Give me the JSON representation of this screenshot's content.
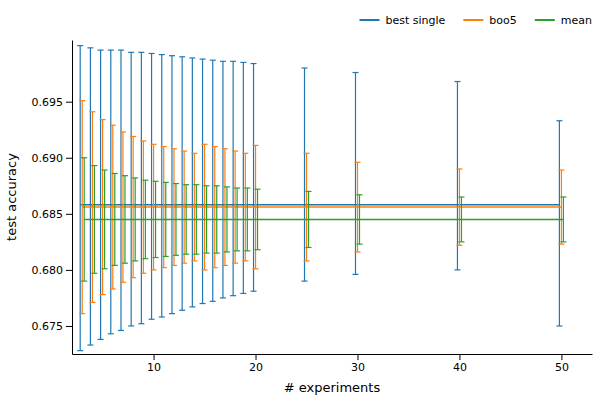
{
  "chart_data": {
    "type": "line",
    "xlabel": "# experiments",
    "ylabel": "test accuracy",
    "x": [
      3,
      4,
      5,
      6,
      7,
      8,
      9,
      10,
      11,
      12,
      13,
      14,
      15,
      16,
      17,
      18,
      19,
      20,
      25,
      30,
      40,
      50
    ],
    "series": [
      {
        "name": "best single",
        "color": "#1f77b4",
        "values": [
          0.6858,
          0.6858,
          0.6858,
          0.6858,
          0.6858,
          0.6858,
          0.6858,
          0.6858,
          0.6858,
          0.6858,
          0.6858,
          0.6858,
          0.6858,
          0.6858,
          0.6858,
          0.6858,
          0.6858,
          0.6858,
          0.6858,
          0.6858,
          0.6858,
          0.6858
        ],
        "error_lower": [
          0.013,
          0.0125,
          0.012,
          0.0115,
          0.0112,
          0.0108,
          0.0106,
          0.0102,
          0.01,
          0.0097,
          0.0094,
          0.0091,
          0.0088,
          0.0086,
          0.0083,
          0.0081,
          0.0079,
          0.0077,
          0.0068,
          0.0062,
          0.0058,
          0.0108
        ],
        "error_upper": [
          0.0142,
          0.014,
          0.0138,
          0.0138,
          0.0138,
          0.0136,
          0.0136,
          0.0135,
          0.0134,
          0.0133,
          0.0132,
          0.0131,
          0.013,
          0.0129,
          0.0128,
          0.0128,
          0.0127,
          0.0126,
          0.0122,
          0.0118,
          0.011,
          0.0075
        ]
      },
      {
        "name": "boo5",
        "color": "#ff7f0e",
        "values": [
          0.6856,
          0.6856,
          0.6856,
          0.6856,
          0.6856,
          0.6856,
          0.6856,
          0.6856,
          0.6856,
          0.6856,
          0.6856,
          0.6856,
          0.6856,
          0.6856,
          0.6856,
          0.6856,
          0.6856,
          0.6856,
          0.6856,
          0.6856,
          0.6856,
          0.6856
        ],
        "error_lower": [
          0.0095,
          0.0085,
          0.0078,
          0.0073,
          0.0067,
          0.0063,
          0.0059,
          0.0056,
          0.0054,
          0.0052,
          0.005,
          0.0048,
          0.0056,
          0.0054,
          0.0052,
          0.005,
          0.0048,
          0.0055,
          0.0048,
          0.004,
          0.0034,
          0.0033
        ],
        "error_upper": [
          0.0095,
          0.0085,
          0.0078,
          0.0073,
          0.0067,
          0.0063,
          0.0059,
          0.0056,
          0.0054,
          0.0052,
          0.005,
          0.0048,
          0.0056,
          0.0054,
          0.0052,
          0.005,
          0.0048,
          0.0055,
          0.0048,
          0.004,
          0.0034,
          0.0033
        ]
      },
      {
        "name": "mean",
        "color": "#2ca02c",
        "values": [
          0.6845,
          0.6845,
          0.6845,
          0.6845,
          0.6845,
          0.6845,
          0.6845,
          0.6845,
          0.6845,
          0.6845,
          0.6845,
          0.6845,
          0.6845,
          0.6845,
          0.6845,
          0.6845,
          0.6845,
          0.6845,
          0.6845,
          0.6845,
          0.6845,
          0.6845
        ],
        "error_lower": [
          0.0055,
          0.0048,
          0.0044,
          0.0041,
          0.0039,
          0.0037,
          0.0035,
          0.0034,
          0.0033,
          0.0032,
          0.0031,
          0.0031,
          0.003,
          0.003,
          0.0029,
          0.0028,
          0.0028,
          0.0027,
          0.0025,
          0.0022,
          0.002,
          0.002
        ],
        "error_upper": [
          0.0055,
          0.0048,
          0.0044,
          0.0041,
          0.0039,
          0.0037,
          0.0035,
          0.0034,
          0.0033,
          0.0032,
          0.0031,
          0.0031,
          0.003,
          0.003,
          0.0029,
          0.0028,
          0.0028,
          0.0027,
          0.0025,
          0.0022,
          0.002,
          0.002
        ]
      }
    ],
    "xlim": [
      2,
      53
    ],
    "ylim": [
      0.6725,
      0.7005
    ],
    "xticks": [
      10,
      20,
      30,
      40,
      50
    ],
    "yticks": [
      0.675,
      {
        "value": 0.68,
        "label": "0.680"
      },
      0.685,
      {
        "value": 0.69,
        "label": "0.690"
      },
      0.695
    ],
    "grid": false,
    "legend": "upper right"
  }
}
